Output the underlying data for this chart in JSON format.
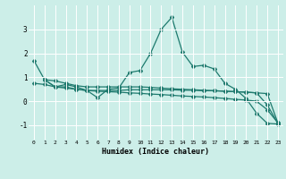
{
  "xlabel": "Humidex (Indice chaleur)",
  "background_color": "#cceee8",
  "grid_color": "#ffffff",
  "line_color": "#1e7a6e",
  "xlim": [
    -0.5,
    23.5
  ],
  "ylim": [
    -1.6,
    4.0
  ],
  "yticks": [
    -1,
    0,
    1,
    2,
    3
  ],
  "xticks": [
    0,
    1,
    2,
    3,
    4,
    5,
    6,
    7,
    8,
    9,
    10,
    11,
    12,
    13,
    14,
    15,
    16,
    17,
    18,
    19,
    20,
    21,
    22,
    23
  ],
  "line1_x": [
    0,
    1,
    2,
    3,
    4,
    5,
    6,
    7,
    8,
    9,
    10,
    11,
    12,
    13,
    14,
    15,
    16,
    17,
    18,
    19,
    20,
    21,
    22,
    23
  ],
  "line1_y": [
    1.7,
    0.9,
    0.85,
    0.75,
    0.65,
    0.6,
    0.6,
    0.6,
    0.6,
    0.6,
    0.6,
    0.58,
    0.55,
    0.52,
    0.5,
    0.48,
    0.46,
    0.44,
    0.42,
    0.4,
    0.38,
    0.35,
    0.32,
    -0.9
  ],
  "line2_x": [
    1,
    2,
    3,
    4,
    5,
    6,
    7,
    8,
    9,
    10,
    11,
    12,
    13,
    14,
    15,
    16,
    17,
    18,
    19,
    20,
    21,
    22,
    23
  ],
  "line2_y": [
    0.9,
    0.6,
    0.7,
    0.6,
    0.45,
    0.15,
    0.5,
    0.55,
    1.2,
    1.28,
    2.0,
    3.0,
    3.5,
    2.05,
    1.45,
    1.5,
    1.35,
    0.75,
    0.5,
    0.12,
    -0.5,
    -0.92,
    -0.95
  ],
  "line3_x": [
    1,
    2,
    3,
    4,
    5,
    6,
    7,
    8,
    9,
    10,
    11,
    12,
    13,
    14,
    15,
    16,
    17,
    18,
    19,
    20,
    21,
    22,
    23
  ],
  "line3_y": [
    0.9,
    0.6,
    0.6,
    0.5,
    0.45,
    0.45,
    0.45,
    0.45,
    0.48,
    0.48,
    0.48,
    0.48,
    0.48,
    0.46,
    0.46,
    0.44,
    0.44,
    0.42,
    0.4,
    0.38,
    0.35,
    -0.15,
    -0.92
  ],
  "line4_x": [
    0,
    1,
    2,
    3,
    4,
    5,
    6,
    7,
    8,
    9,
    10,
    11,
    12,
    13,
    14,
    15,
    16,
    17,
    18,
    19,
    20,
    21,
    22,
    23
  ],
  "line4_y": [
    0.75,
    0.7,
    0.6,
    0.55,
    0.5,
    0.45,
    0.42,
    0.4,
    0.38,
    0.35,
    0.33,
    0.3,
    0.28,
    0.25,
    0.22,
    0.2,
    0.18,
    0.15,
    0.12,
    0.08,
    0.05,
    0.0,
    -0.35,
    -0.9
  ]
}
